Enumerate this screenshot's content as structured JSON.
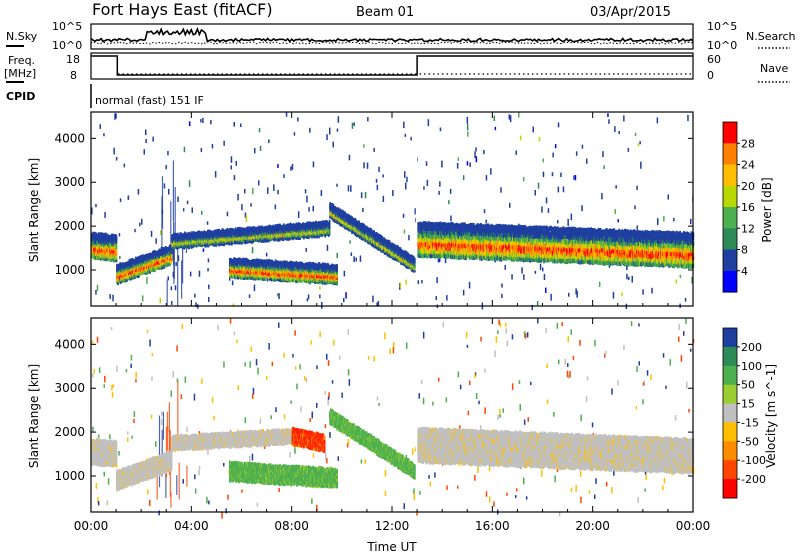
{
  "header": {
    "station": "Fort Hays East (fitACF)",
    "beam": "Beam 01",
    "date": "03/Apr/2015"
  },
  "noise_panel": {
    "left_label": "N.Sky",
    "right_label": "N.Search",
    "left_ticks": [
      "10^5",
      "10^0"
    ],
    "right_ticks": [
      "10^5",
      "10^0"
    ]
  },
  "freq_panel": {
    "left_label": "Freq.",
    "left_unit": "[MHz]",
    "right_label": "Nave",
    "left_ticks": [
      "18",
      "8"
    ],
    "right_ticks": [
      "60",
      "0"
    ],
    "freq_steps_hours": [
      0,
      1.05,
      13.0,
      24
    ],
    "freq_levels": [
      "high",
      "low",
      "high"
    ]
  },
  "cpid": {
    "label": "CPID",
    "value": "normal (fast) 151 IF"
  },
  "chart_data": [
    {
      "type": "heatmap",
      "panel": "power",
      "ylabel": "Slant Range [km]",
      "xlabel": "",
      "xlim": [
        0,
        24
      ],
      "ylim": [
        180,
        4600
      ],
      "x_ticks": [
        "00:00",
        "04:00",
        "08:00",
        "12:00",
        "16:00",
        "20:00",
        "00:00"
      ],
      "x_tick_hours": [
        0,
        4,
        8,
        12,
        16,
        20,
        24
      ],
      "y_ticks": [
        1000,
        2000,
        3000,
        4000
      ],
      "colorbar_label": "Power [dB]",
      "colorbar_ticks": [
        "28",
        "24",
        "20",
        "16",
        "12",
        "8",
        "4"
      ],
      "colorbar_colors": [
        "#ff0000",
        "#ff7f00",
        "#ffbf00",
        "#b8d800",
        "#4caf50",
        "#2e8b57",
        "#1e3fa0",
        "#0000ff"
      ],
      "echo_bands": [
        {
          "t0": 0.0,
          "t1": 1.0,
          "r_start": 1600,
          "r_end": 1550,
          "width": 500,
          "intensity": "high"
        },
        {
          "t0": 1.0,
          "t1": 3.2,
          "r_start": 950,
          "r_end": 1400,
          "width": 350,
          "intensity": "high"
        },
        {
          "t0": 3.2,
          "t1": 9.5,
          "r_start": 1700,
          "r_end": 2000,
          "width": 250,
          "intensity": "medium"
        },
        {
          "t0": 5.5,
          "t1": 9.8,
          "r_start": 1100,
          "r_end": 950,
          "width": 350,
          "intensity": "high"
        },
        {
          "t0": 9.5,
          "t1": 12.9,
          "r_start": 2400,
          "r_end": 1150,
          "width": 250,
          "intensity": "medium"
        },
        {
          "t0": 13.0,
          "t1": 24.0,
          "r_start": 1750,
          "r_end": 1500,
          "width": 700,
          "intensity": "high"
        }
      ]
    },
    {
      "type": "heatmap",
      "panel": "velocity",
      "ylabel": "Slant Range [km]",
      "xlabel": "Time UT",
      "xlim": [
        0,
        24
      ],
      "ylim": [
        180,
        4600
      ],
      "x_ticks": [
        "00:00",
        "04:00",
        "08:00",
        "12:00",
        "16:00",
        "20:00",
        "00:00"
      ],
      "x_tick_hours": [
        0,
        4,
        8,
        12,
        16,
        20,
        24
      ],
      "y_ticks": [
        1000,
        2000,
        3000,
        4000
      ],
      "colorbar_label": "Velocity [m s^-1]",
      "colorbar_ticks": [
        "200",
        "100",
        "50",
        "15",
        "-15",
        "-50",
        "-100",
        "-200"
      ],
      "colorbar_colors": [
        "#1e3fa0",
        "#2e8b57",
        "#4caf50",
        "#9acd32",
        "#c0c0c0",
        "#ffbf00",
        "#ff8c00",
        "#ff4500",
        "#ff0000"
      ],
      "echo_bands": [
        {
          "t0": 0.0,
          "t1": 1.0,
          "r_start": 1600,
          "r_end": 1550,
          "width": 500,
          "color": "gray"
        },
        {
          "t0": 1.0,
          "t1": 3.2,
          "r_start": 950,
          "r_end": 1400,
          "width": 350,
          "color": "gray"
        },
        {
          "t0": 3.2,
          "t1": 8.0,
          "r_start": 1800,
          "r_end": 1950,
          "width": 250,
          "color": "gray"
        },
        {
          "t0": 8.0,
          "t1": 9.3,
          "r_start": 1950,
          "r_end": 1800,
          "width": 300,
          "color": "red"
        },
        {
          "t0": 5.5,
          "t1": 9.8,
          "r_start": 1150,
          "r_end": 1000,
          "width": 350,
          "color": "green"
        },
        {
          "t0": 9.5,
          "t1": 12.9,
          "r_start": 2400,
          "r_end": 1150,
          "width": 250,
          "color": "green"
        },
        {
          "t0": 13.0,
          "t1": 24.0,
          "r_start": 1750,
          "r_end": 1500,
          "width": 700,
          "color": "gray"
        }
      ]
    }
  ]
}
